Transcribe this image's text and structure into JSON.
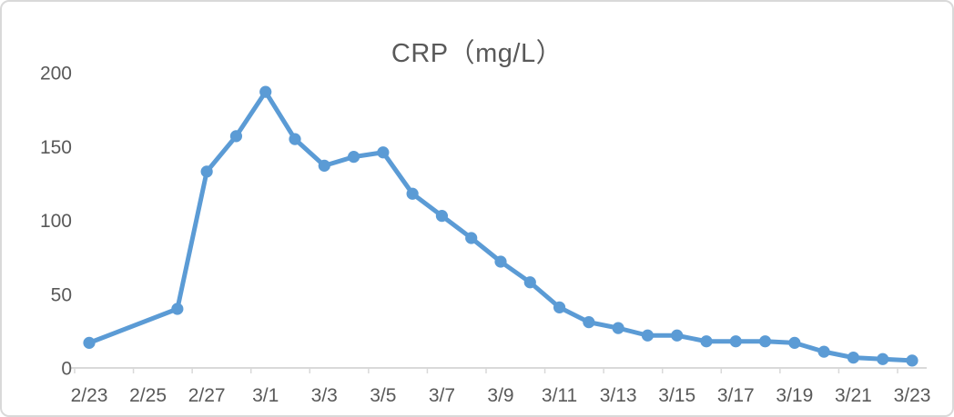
{
  "chart_data": {
    "type": "line",
    "title": "CRP（mg/L）",
    "x": [
      "2/23",
      "2/26",
      "2/27",
      "2/28",
      "3/1",
      "3/2",
      "3/3",
      "3/4",
      "3/5",
      "3/6",
      "3/7",
      "3/8",
      "3/9",
      "3/10",
      "3/11",
      "3/12",
      "3/13",
      "3/14",
      "3/15",
      "3/16",
      "3/17",
      "3/18",
      "3/19",
      "3/20",
      "3/21",
      "3/22",
      "3/23"
    ],
    "values": [
      17,
      40,
      133,
      157,
      187,
      155,
      137,
      143,
      146,
      118,
      103,
      88,
      72,
      58,
      41,
      31,
      27,
      22,
      22,
      18,
      18,
      18,
      17,
      11,
      7,
      6,
      5
    ],
    "xlabel": "",
    "ylabel": "",
    "ylim": [
      0,
      200
    ],
    "yticks": [
      0,
      50,
      100,
      150,
      200
    ],
    "xtick_labels": [
      "2/23",
      "2/25",
      "2/27",
      "3/1",
      "3/3",
      "3/5",
      "3/7",
      "3/9",
      "3/11",
      "3/13",
      "3/15",
      "3/17",
      "3/19",
      "3/21",
      "3/23"
    ],
    "grid": false,
    "legend_position": "none",
    "marker": "circle",
    "notes": "daily date axis from 2/23 to 3/23; no data points on 2/24 and 2/25",
    "colors": {
      "line": "#5B9BD5",
      "marker": "#5B9BD5",
      "axis_line": "#D9D9D9",
      "tick_text": "#595959",
      "title_text": "#595959",
      "background": "#FFFFFF",
      "frame_border": "#D9D9D9"
    }
  }
}
